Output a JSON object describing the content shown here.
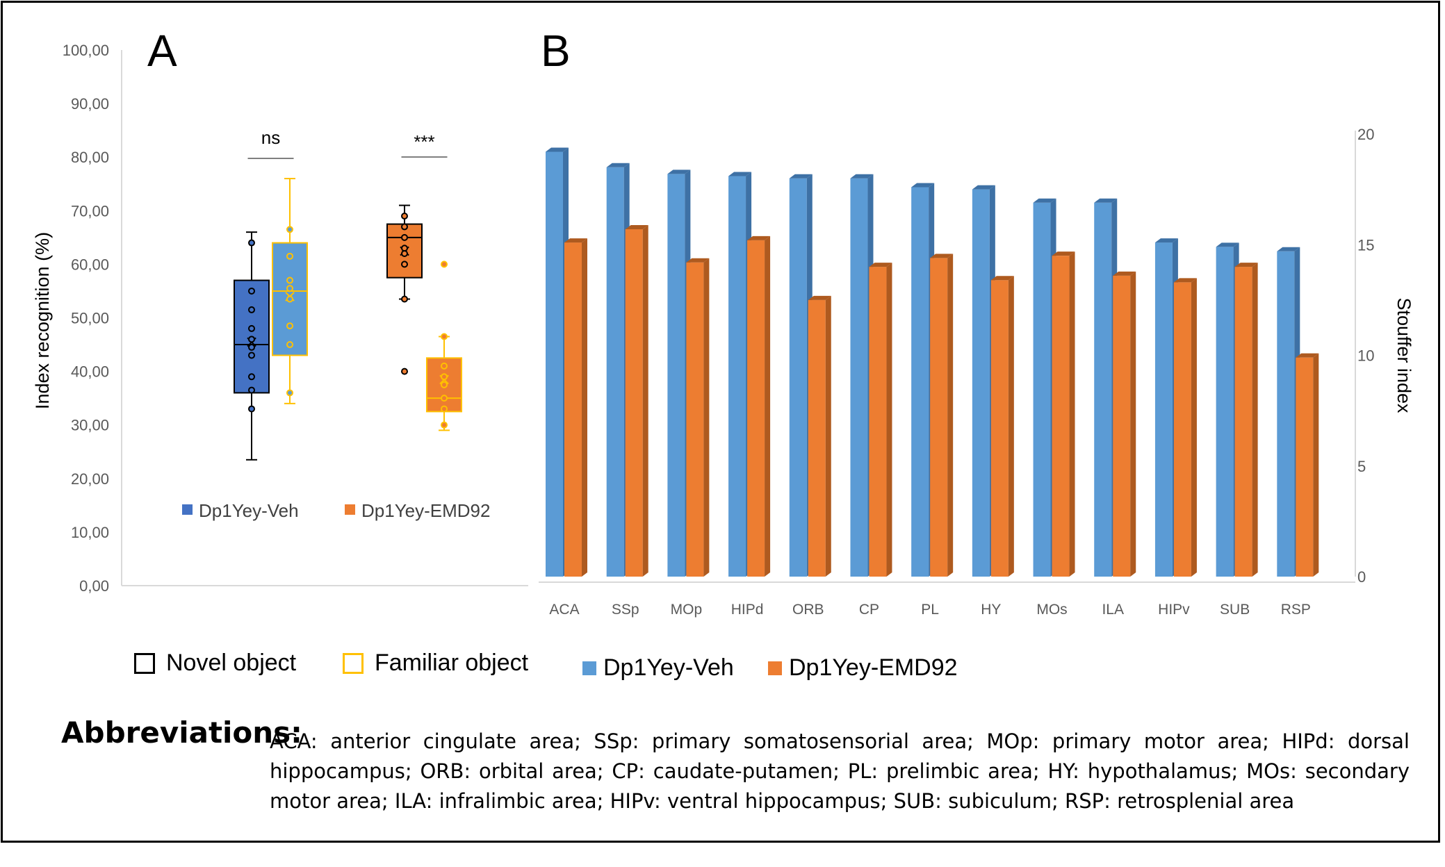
{
  "panel_labels": {
    "a": "A",
    "b": "B"
  },
  "chart_data": [
    {
      "type": "box",
      "panel": "A",
      "ylabel": "Index recognition (%)",
      "ylim": [
        0,
        100
      ],
      "yticks": [
        "0,00",
        "10,00",
        "20,00",
        "30,00",
        "40,00",
        "50,00",
        "60,00",
        "70,00",
        "80,00",
        "90,00",
        "100,00"
      ],
      "groups": [
        {
          "name": "Dp1Yey-Veh",
          "significance": "ns",
          "boxes": [
            {
              "object": "Novel object",
              "min": 23.5,
              "q1": 36,
              "median": 45,
              "q3": 57,
              "max": 66,
              "mean": 45.5,
              "points": [
                64,
                55,
                51.5,
                48,
                46,
                44.5,
                43,
                39,
                36.5,
                33
              ]
            },
            {
              "object": "Familiar object",
              "min": 34,
              "q1": 43,
              "median": 55,
              "q3": 64,
              "max": 76,
              "mean": 54,
              "points": [
                66.5,
                61.5,
                57,
                55.5,
                53.5,
                48.5,
                45,
                36
              ]
            }
          ]
        },
        {
          "name": "Dp1Yey-EMD92",
          "significance": "***",
          "boxes": [
            {
              "object": "Novel object",
              "min": 53.5,
              "q1": 57.5,
              "median": 65,
              "q3": 67.5,
              "max": 71,
              "mean": 62.5,
              "points": [
                69,
                67,
                65,
                63,
                62,
                60,
                53.5
              ],
              "outliers": [
                40
              ]
            },
            {
              "object": "Familiar object",
              "min": 29,
              "q1": 32.5,
              "median": 35,
              "q3": 42.5,
              "max": 46.5,
              "mean": 38.5,
              "points": [
                46.5,
                41,
                39,
                37.5,
                35,
                33,
                30
              ],
              "outliers": [
                60
              ]
            }
          ]
        }
      ],
      "legend": [
        {
          "label": "Dp1Yey-Veh",
          "color": "#4472c4"
        },
        {
          "label": "Dp1Yey-EMD92",
          "color": "#ed7d31"
        }
      ]
    },
    {
      "type": "bar",
      "panel": "B",
      "ylabel": "Stouffer index",
      "ylim": [
        0,
        20
      ],
      "yticks": [
        "0",
        "5",
        "10",
        "15",
        "20"
      ],
      "categories": [
        "ACA",
        "SSp",
        "MOp",
        "HIPd",
        "ORB",
        "CP",
        "PL",
        "HY",
        "MOs",
        "ILA",
        "HIPv",
        "SUB",
        "RSP"
      ],
      "series": [
        {
          "name": "Dp1Yey-Veh",
          "color": "#5b9bd5",
          "values": [
            19.2,
            18.5,
            18.2,
            18.1,
            18.0,
            18.0,
            17.6,
            17.5,
            16.9,
            16.9,
            15.1,
            14.9,
            14.7
          ]
        },
        {
          "name": "Dp1Yey-EMD92",
          "color": "#ed7d31",
          "values": [
            15.1,
            15.7,
            14.2,
            15.2,
            12.5,
            14.0,
            14.4,
            13.4,
            14.5,
            13.6,
            13.3,
            14.0,
            9.9
          ]
        }
      ]
    }
  ],
  "bottom_legend": [
    {
      "label": "Novel object",
      "swatch": "outline",
      "color": "#000000"
    },
    {
      "label": "Familiar object",
      "swatch": "outline",
      "color": "#ffc000"
    },
    {
      "label": "Dp1Yey-Veh",
      "swatch": "fill",
      "color": "#5b9bd5"
    },
    {
      "label": "Dp1Yey-EMD92",
      "swatch": "fill",
      "color": "#ed7d31"
    }
  ],
  "abbreviations": {
    "heading": "Abbreviations:",
    "text": "ACA: anterior cingulate area; SSp: primary somatosensorial area; MOp: primary motor area; HIPd: dorsal hippocampus; ORB: orbital area; CP: caudate-putamen; PL: prelimbic area; HY: hypothalamus; MOs: secondary motor area; ILA: infralimbic area; HIPv: ventral hippocampus; SUB: subiculum; RSP: retrosplenial area"
  }
}
